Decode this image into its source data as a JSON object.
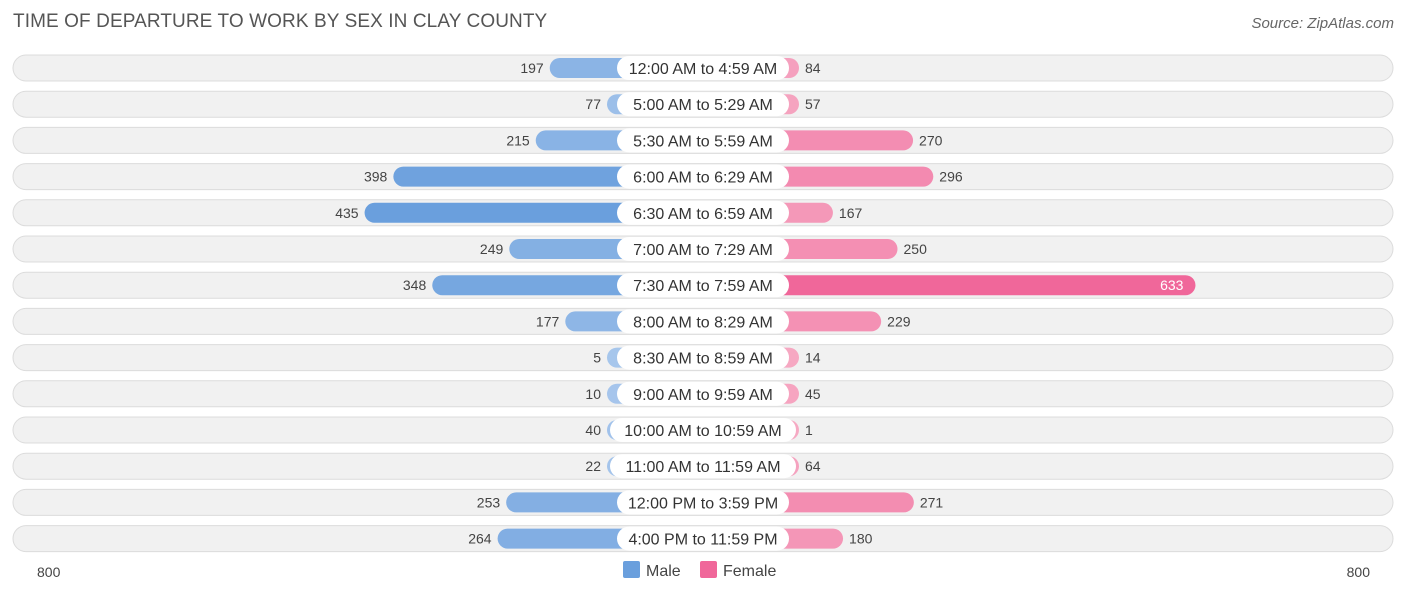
{
  "chart_data": {
    "type": "bar",
    "orientation": "horizontal-diverging",
    "title": "TIME OF DEPARTURE TO WORK BY SEX IN CLAY COUNTY",
    "source": "Source: ZipAtlas.com",
    "categories": [
      "12:00 AM to 4:59 AM",
      "5:00 AM to 5:29 AM",
      "5:30 AM to 5:59 AM",
      "6:00 AM to 6:29 AM",
      "6:30 AM to 6:59 AM",
      "7:00 AM to 7:29 AM",
      "7:30 AM to 7:59 AM",
      "8:00 AM to 8:29 AM",
      "8:30 AM to 8:59 AM",
      "9:00 AM to 9:59 AM",
      "10:00 AM to 10:59 AM",
      "11:00 AM to 11:59 AM",
      "12:00 PM to 3:59 PM",
      "4:00 PM to 11:59 PM"
    ],
    "series": [
      {
        "name": "Male",
        "values": [
          197,
          77,
          215,
          398,
          435,
          249,
          348,
          177,
          5,
          10,
          40,
          22,
          253,
          264
        ]
      },
      {
        "name": "Female",
        "values": [
          84,
          57,
          270,
          296,
          167,
          250,
          633,
          229,
          14,
          45,
          1,
          64,
          271,
          180
        ]
      }
    ],
    "axis": {
      "left_label": "800",
      "right_label": "800",
      "max": 800
    },
    "legend": {
      "position": "bottom-center",
      "items": [
        "Male",
        "Female"
      ]
    },
    "colors": {
      "male_light": "#a7c6ec",
      "male_strong": "#6a9fdd",
      "female_light": "#f6a9c3",
      "female_strong": "#f0679a",
      "track": "#f1f1f1",
      "track_border": "#dcdcdc"
    }
  }
}
